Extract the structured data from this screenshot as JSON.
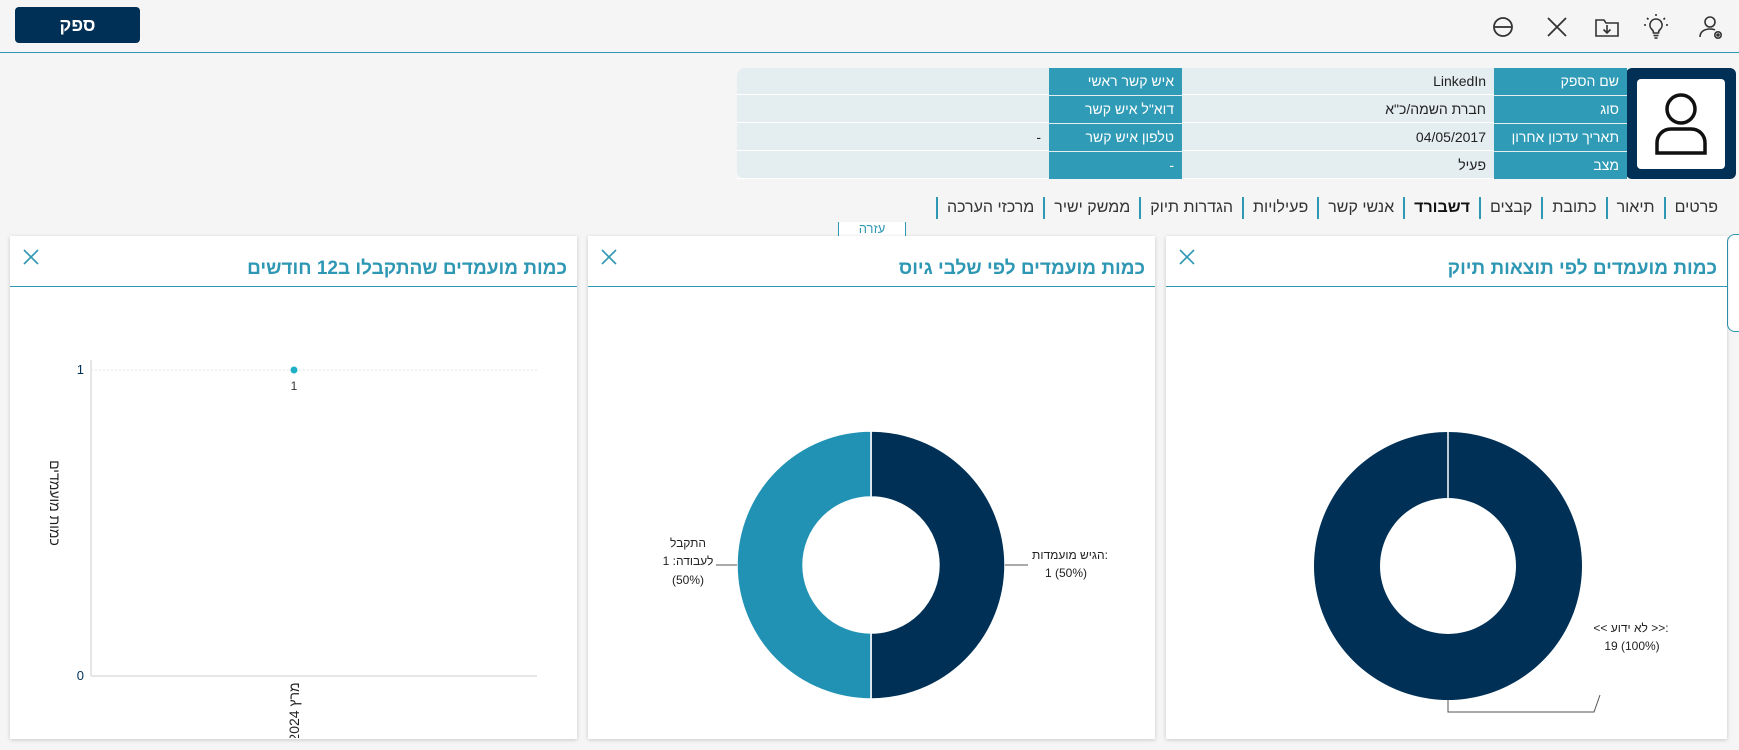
{
  "topbar": {
    "supplier_button": "ספק",
    "icons": [
      "user-settings-icon",
      "lightbulb-icon",
      "folder-download-icon",
      "close-icon",
      "no-entry-icon"
    ]
  },
  "header": {
    "rows": [
      {
        "label": "שם הספק",
        "value": "LinkedIn",
        "label2": "איש קשר ראשי",
        "value2": ""
      },
      {
        "label": "סוג",
        "value": "חברת השמה/כ\"א",
        "label2": "דוא\"ל איש קשר",
        "value2": ""
      },
      {
        "label": "תאריך עדכון אחרון",
        "value": "04/05/2017",
        "label2": "טלפון איש קשר",
        "value2": "-"
      },
      {
        "label": "מצב",
        "value": "פעיל",
        "label2": "-",
        "value2": ""
      }
    ]
  },
  "tabs": [
    "פרטים",
    "תיאור",
    "כתובת",
    "קבצים",
    "דשבורד",
    "אנשי קשר",
    "פעילויות",
    "הגדרות תיוק",
    "ממשק ישיר",
    "מרכזי הערכה"
  ],
  "active_tab": "דשבורד",
  "floating_tab_label": "עזרה",
  "panels": {
    "filing": {
      "title": "כמות מועמדים לפי תוצאות תיוק"
    },
    "stages": {
      "title": "כמות מועמדים לפי שלבי גיוס"
    },
    "hired": {
      "title": "כמות מועמדים שהתקבלו ב12 חודשים"
    }
  },
  "colors": {
    "dark": "#003055",
    "accent": "#2e98b4",
    "mid": "#2192b3"
  },
  "chart_data": [
    {
      "type": "pie",
      "title": "כמות מועמדים לפי תוצאות תיוק",
      "slices": [
        {
          "label": "<< לא ידוע >>:",
          "value": 19,
          "percent_text": "19 (100%)",
          "color": "#003055"
        }
      ]
    },
    {
      "type": "pie",
      "title": "כמות מועמדים לפי שלבי גיוס",
      "slices": [
        {
          "label": "הגיש מועמדות:",
          "value": 1,
          "percent_text": "1 (50%)",
          "color": "#003055"
        },
        {
          "label": "התקבל לעבודה: 1",
          "value": 1,
          "percent_text": "(50%)",
          "color": "#2192b3"
        }
      ]
    },
    {
      "type": "line",
      "title": "כמות מועמדים שהתקבלו ב12 חודשים",
      "ylabel": "כמות מועמדים",
      "categories": [
        "מרץ 2024"
      ],
      "values": [
        1
      ],
      "ylim": [
        0,
        1
      ],
      "yticks": [
        "0",
        "1"
      ],
      "data_labels": [
        "1"
      ]
    }
  ]
}
